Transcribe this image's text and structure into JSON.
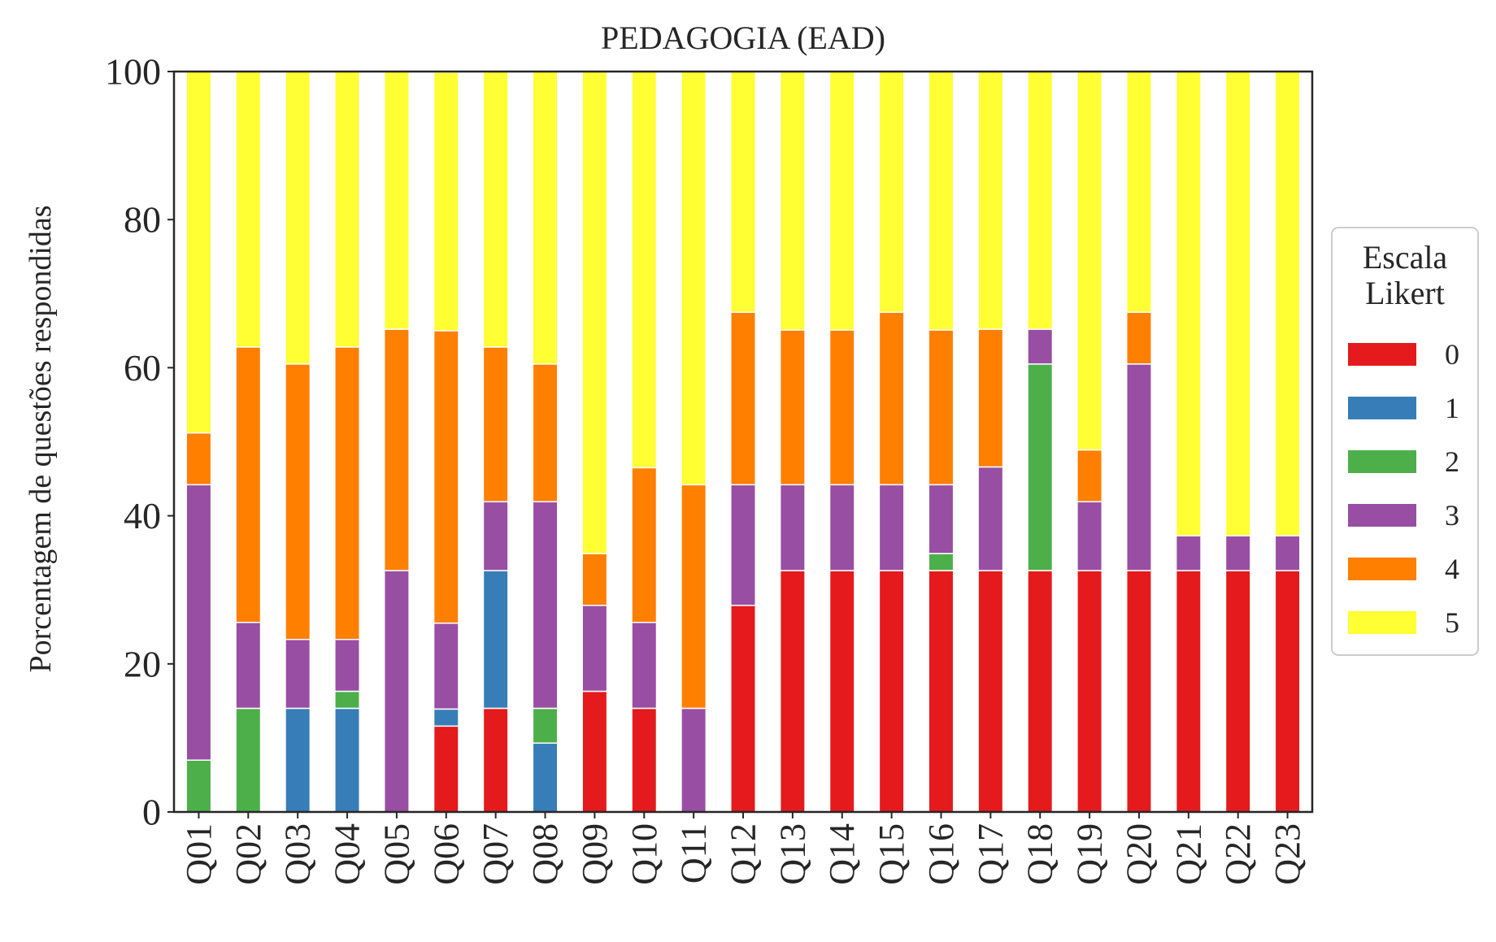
{
  "chart_data": {
    "type": "bar",
    "stacked": true,
    "title": "PEDAGOGIA (EAD)",
    "xlabel": "",
    "ylabel": "Porcentagem de questões respondidas",
    "ylim": [
      0,
      100
    ],
    "yticks": [
      "0",
      "20",
      "40",
      "60",
      "80",
      "100"
    ],
    "grid": false,
    "legend": {
      "title_line1": "Escala",
      "title_line2": "Likert",
      "placement": "right"
    },
    "categories": [
      "Q01",
      "Q02",
      "Q03",
      "Q04",
      "Q05",
      "Q06",
      "Q07",
      "Q08",
      "Q09",
      "Q10",
      "Q11",
      "Q12",
      "Q13",
      "Q14",
      "Q15",
      "Q16",
      "Q17",
      "Q18",
      "Q19",
      "Q20",
      "Q21",
      "Q22",
      "Q23"
    ],
    "series": [
      {
        "name": "0",
        "color": "#e41a1c",
        "values": [
          0,
          0,
          0,
          0,
          0,
          11.6,
          14,
          0,
          16.3,
          14,
          0,
          27.9,
          32.6,
          32.6,
          32.6,
          32.6,
          32.6,
          32.6,
          32.6,
          32.6,
          32.6,
          32.6,
          32.6
        ]
      },
      {
        "name": "1",
        "color": "#377eb8",
        "values": [
          0,
          0,
          14,
          14,
          0,
          2.3,
          18.6,
          9.3,
          0,
          0,
          0,
          0,
          0,
          0,
          0,
          0,
          0,
          0,
          0,
          0,
          0,
          0,
          0
        ]
      },
      {
        "name": "2",
        "color": "#4daf4a",
        "values": [
          7,
          14,
          0,
          2.3,
          0,
          0,
          0,
          4.7,
          0,
          0,
          0,
          0,
          0,
          0,
          0,
          2.3,
          0,
          27.9,
          0,
          0,
          0,
          0,
          0
        ]
      },
      {
        "name": "3",
        "color": "#984ea3",
        "values": [
          37.2,
          11.6,
          9.3,
          7,
          32.6,
          11.6,
          9.3,
          27.9,
          11.6,
          11.6,
          14,
          16.3,
          11.6,
          11.6,
          11.6,
          9.3,
          14,
          4.7,
          9.3,
          27.9,
          4.7,
          4.7,
          4.7
        ]
      },
      {
        "name": "4",
        "color": "#ff7f00",
        "values": [
          7,
          37.2,
          37.2,
          39.5,
          32.6,
          39.5,
          20.9,
          18.6,
          7,
          20.9,
          30.2,
          23.3,
          20.9,
          20.9,
          23.3,
          20.9,
          18.6,
          0,
          7,
          7,
          0,
          0,
          0
        ]
      },
      {
        "name": "5",
        "color": "#ffff33",
        "values": [
          48.8,
          37.2,
          39.5,
          37.2,
          34.8,
          34.9,
          37.2,
          39.5,
          65.1,
          53.5,
          55.8,
          32.5,
          34.9,
          34.9,
          32.5,
          34.9,
          34.8,
          34.8,
          51.1,
          32.5,
          62.7,
          62.7,
          62.7
        ]
      }
    ]
  }
}
